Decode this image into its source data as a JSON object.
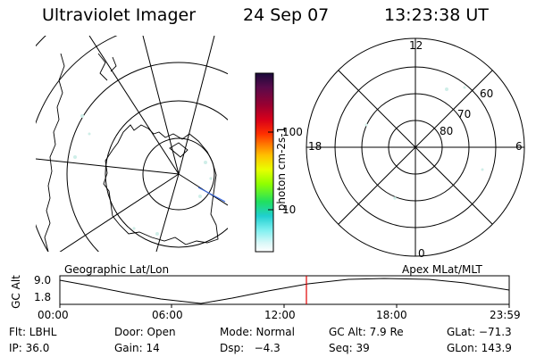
{
  "header": {
    "title": "Ultraviolet Imager",
    "date": "24 Sep 07",
    "time": "13:23:38 UT"
  },
  "geo_panel": {
    "label": "Geographic Lat/Lon"
  },
  "apex_panel": {
    "label": "Apex MLat/MLT",
    "mlt_labels": {
      "top": "12",
      "left": "18",
      "right": "6",
      "bottom": "0"
    },
    "lat_labels": [
      "60",
      "70",
      "80"
    ]
  },
  "colorbar": {
    "unit_label": "photon cm-2s-1",
    "ticks": [
      "100",
      "10"
    ],
    "colors": [
      "#1a0a3a",
      "#5a0a4a",
      "#9a0030",
      "#d8001a",
      "#ff3000",
      "#ff7a00",
      "#ffc000",
      "#e8ff00",
      "#90ff00",
      "#20e060",
      "#20d0d0",
      "#80f0f0",
      "#d8f8f8",
      "#ffffff"
    ]
  },
  "altitude_plot": {
    "ylabel": "GC Alt",
    "yticks": [
      "9.0",
      "1.8"
    ],
    "xticks": [
      "00:00",
      "06:00",
      "12:00",
      "18:00",
      "23:59"
    ],
    "current_time_marker_color": "#e00000"
  },
  "footer": {
    "flt": "Flt: LBHL",
    "door": "Door: Open",
    "mode": "Mode: Normal",
    "gc_alt": "GC Alt: 7.9 Re",
    "glat": "GLat: −71.3",
    "ip": "IP: 36.0",
    "gain": "Gain: 14",
    "dsp": "Dsp:   −4.3",
    "seq": "Seq: 39",
    "glon": "GLon: 143.9"
  }
}
